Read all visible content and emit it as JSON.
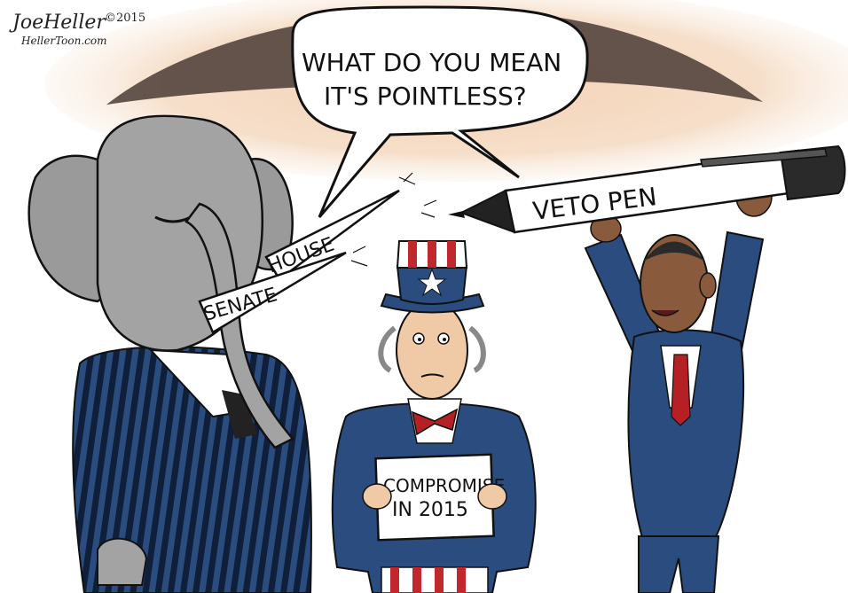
{
  "signature": {
    "name": "JoeHeller",
    "year": "©2015",
    "site": "HellerToon.com"
  },
  "speech_bubble": {
    "line1": "WHAT DO YOU MEAN",
    "line2": "IT'S POINTLESS?"
  },
  "tusk_labels": {
    "upper": "HOUSE",
    "lower": "SENATE"
  },
  "pen_label": "VETO PEN",
  "sign": {
    "line1": "COMPROMISE",
    "line2": "IN 2015"
  },
  "colors": {
    "suit_blue": "#2b4c7e",
    "stripe": "#0f1f3a",
    "elephant_gray": "#9a9a9a",
    "sky_orange": "#f2c6a0",
    "hat_red": "#c0282d",
    "tie_red": "#b52025"
  }
}
